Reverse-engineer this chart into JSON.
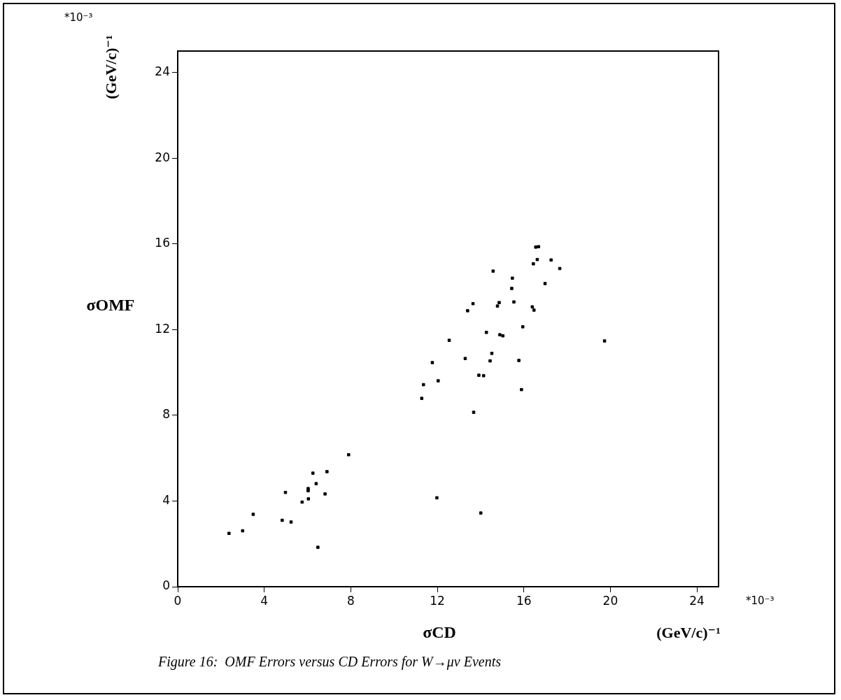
{
  "chart_data": {
    "type": "scatter",
    "xlabel": "σCD",
    "ylabel": "σOMF",
    "annotations": [
      "*10⁻³",
      "(GeV/c)⁻¹",
      "*10⁻³",
      "(GeV/c)⁻¹",
      "Figure 16:  OMF Errors versus CD Errors for W→μν Events"
    ],
    "x": [
      2.37,
      3.0,
      3.49,
      4.83,
      4.98,
      5.24,
      5.75,
      6.04,
      6.03,
      6.03,
      6.25,
      6.4,
      6.81,
      6.9,
      6.48,
      7.9,
      11.28,
      11.36,
      11.77,
      12.04,
      12.55,
      13.29,
      13.4,
      13.65,
      13.68,
      13.92,
      14.14,
      14.27,
      14.44,
      14.52,
      14.58,
      14.78,
      14.86,
      14.89,
      15.03,
      15.44,
      15.47,
      15.54,
      15.77,
      15.89,
      15.95,
      16.39,
      16.47,
      16.44,
      16.62,
      16.55,
      16.68,
      16.98,
      17.26,
      17.66,
      11.98,
      14.01,
      19.73
    ],
    "values": [
      2.49,
      2.61,
      3.38,
      3.1,
      4.4,
      3.02,
      3.95,
      4.1,
      4.58,
      4.48,
      5.3,
      4.81,
      4.33,
      5.37,
      1.84,
      6.16,
      8.79,
      9.43,
      10.46,
      9.61,
      11.5,
      10.65,
      12.88,
      13.21,
      8.14,
      9.87,
      9.85,
      11.87,
      10.54,
      10.89,
      14.73,
      13.1,
      13.26,
      11.76,
      11.71,
      13.92,
      14.4,
      13.29,
      10.56,
      9.2,
      12.13,
      13.06,
      12.91,
      15.07,
      15.27,
      15.85,
      15.87,
      14.15,
      15.25,
      14.85,
      4.15,
      3.44,
      11.47
    ],
    "color": "#000000",
    "marker": "square",
    "xlim": [
      0,
      25
    ],
    "ylim": [
      0,
      25
    ],
    "xticks": [
      0,
      4,
      8,
      12,
      16,
      20,
      24
    ],
    "yticks": [
      0,
      4,
      8,
      12,
      16,
      20,
      24
    ],
    "grid": false,
    "legend": false
  }
}
